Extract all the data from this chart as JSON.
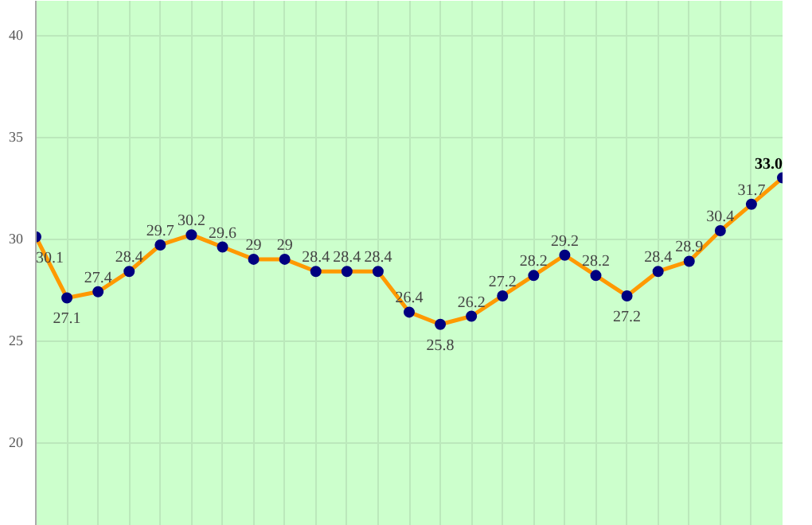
{
  "chart_data": {
    "type": "line",
    "categories": [
      null,
      null,
      null,
      null,
      null,
      null,
      null,
      null,
      null,
      null,
      null,
      null,
      null,
      null,
      null,
      null,
      null,
      null,
      null,
      null,
      null,
      null,
      null,
      null,
      null
    ],
    "series": [
      {
        "color": "#ff9900",
        "values": [
          30.1,
          27.1,
          27.4,
          28.4,
          29.7,
          30.2,
          29.6,
          29,
          29,
          28.4,
          28.4,
          28.4,
          26.4,
          25.8,
          26.2,
          27.2,
          28.2,
          29.2,
          28.2,
          27.2,
          28.4,
          28.9,
          30.4,
          31.7,
          33.0
        ],
        "value_labels": [
          "30.1",
          "27.1",
          "27.4",
          "28.4",
          "29.7",
          "30.2",
          "29.6",
          "29",
          "29",
          "28.4",
          "28.4",
          "28.4",
          "26.4",
          "25.8",
          "26.2",
          "27.2",
          "28.2",
          "29.2",
          "28.2",
          "27.2",
          "28.4",
          "28.9",
          "30.4",
          "31.7",
          "33.0"
        ]
      }
    ],
    "ylim": [
      15.9,
      41.7
    ],
    "yticks": [
      20,
      25,
      30,
      35,
      40
    ],
    "grid": true,
    "marker": "circle",
    "line_style": "solid"
  }
}
